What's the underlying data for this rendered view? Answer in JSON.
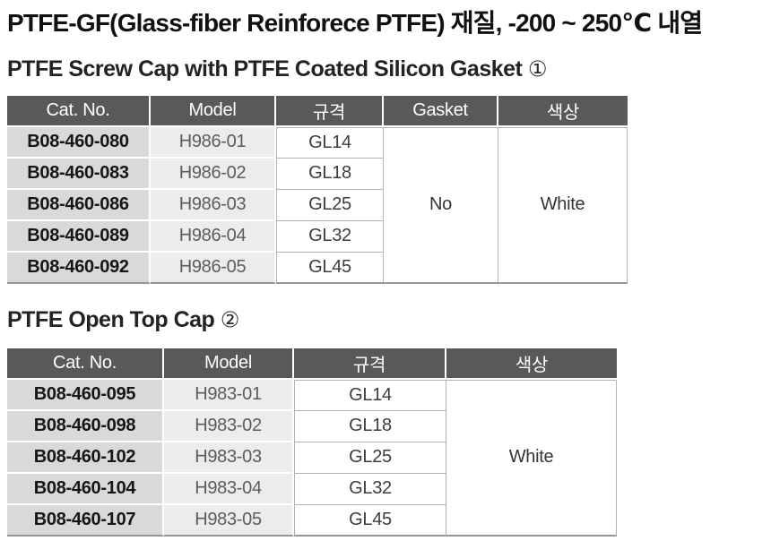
{
  "page": {
    "title": "PTFE-GF(Glass-fiber Reinforece PTFE) 재질, -200 ~ 250℃ 내열"
  },
  "colors": {
    "table_header_bg": "#58595b",
    "table_header_text": "#ffffff",
    "catno_column_bg": "#d8d9da",
    "model_column_bg": "#ebeced",
    "grid_line": "#b2b2b2"
  },
  "sections": [
    {
      "heading": "PTFE Screw Cap with PTFE Coated Silicon Gasket",
      "badge": "①",
      "table": {
        "columns": [
          "Cat. No.",
          "Model",
          "규격",
          "Gasket",
          "색상"
        ],
        "rows": [
          [
            "B08-460-080",
            "H986-01",
            "GL14"
          ],
          [
            "B08-460-083",
            "H986-02",
            "GL18"
          ],
          [
            "B08-460-086",
            "H986-03",
            "GL25"
          ],
          [
            "B08-460-089",
            "H986-04",
            "GL32"
          ],
          [
            "B08-460-092",
            "H986-05",
            "GL45"
          ]
        ],
        "merged": [
          {
            "name": "gasket",
            "value": "No"
          },
          {
            "name": "color",
            "value": "White"
          }
        ]
      }
    },
    {
      "heading": "PTFE Open Top Cap",
      "badge": "②",
      "table": {
        "columns": [
          "Cat. No.",
          "Model",
          "규격",
          "색상"
        ],
        "rows": [
          [
            "B08-460-095",
            "H983-01",
            "GL14"
          ],
          [
            "B08-460-098",
            "H983-02",
            "GL18"
          ],
          [
            "B08-460-102",
            "H983-03",
            "GL25"
          ],
          [
            "B08-460-104",
            "H983-04",
            "GL32"
          ],
          [
            "B08-460-107",
            "H983-05",
            "GL45"
          ]
        ],
        "merged": [
          {
            "name": "color",
            "value": "White"
          }
        ]
      }
    }
  ]
}
